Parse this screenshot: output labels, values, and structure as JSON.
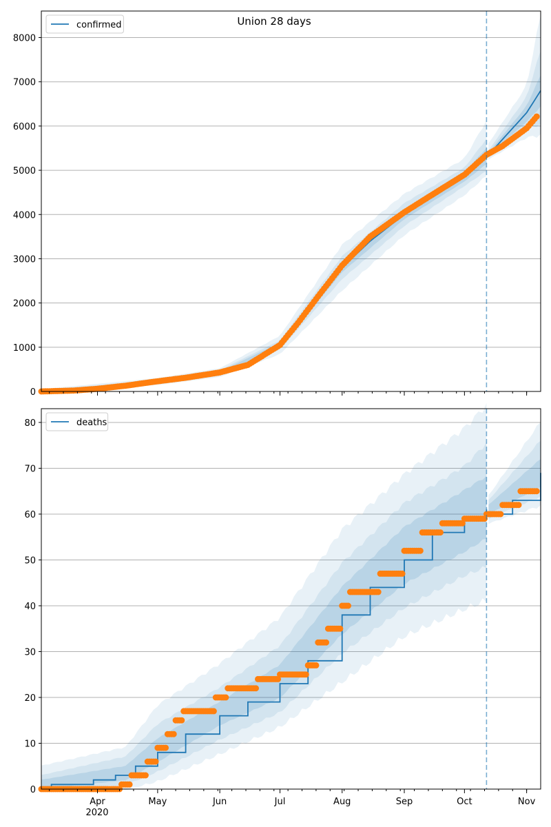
{
  "figure": {
    "title": "Union 28 days",
    "year_label": "2020",
    "colors": {
      "model": "#1f77b4",
      "observed": "#ff7f0e",
      "band": "#1f77b4",
      "grid": "#b0b0b0",
      "cutoff": "#1f77b4"
    }
  },
  "chart_data": [
    {
      "type": "line",
      "panel": "confirmed",
      "title": "Union 28 days",
      "legend": [
        "confirmed"
      ],
      "legend_position": "top-left",
      "grid": "y",
      "x_start": "2020-03-04",
      "x_end": "2020-11-08",
      "cutoff_date": "2020-10-12",
      "x_ticks": [
        "Apr",
        "May",
        "Jun",
        "Jul",
        "Aug",
        "Sep",
        "Oct",
        "Nov"
      ],
      "x_tick_labels_visible": false,
      "y_ticks": [
        0,
        1000,
        2000,
        3000,
        4000,
        5000,
        6000,
        7000,
        8000
      ],
      "ylim": [
        0,
        8600
      ],
      "series": [
        {
          "name": "confirmed",
          "kind": "model",
          "points": [
            [
              "2020-03-04",
              0
            ],
            [
              "2020-03-20",
              20
            ],
            [
              "2020-04-01",
              60
            ],
            [
              "2020-04-15",
              120
            ],
            [
              "2020-05-01",
              220
            ],
            [
              "2020-05-15",
              300
            ],
            [
              "2020-06-01",
              420
            ],
            [
              "2020-06-15",
              600
            ],
            [
              "2020-07-01",
              1050
            ],
            [
              "2020-07-10",
              1500
            ],
            [
              "2020-07-20",
              2100
            ],
            [
              "2020-08-01",
              2800
            ],
            [
              "2020-08-15",
              3400
            ],
            [
              "2020-09-01",
              4000
            ],
            [
              "2020-09-15",
              4400
            ],
            [
              "2020-10-01",
              4850
            ],
            [
              "2020-10-12",
              5300
            ],
            [
              "2020-10-20",
              5700
            ],
            [
              "2020-11-01",
              6300
            ],
            [
              "2020-11-08",
              6800
            ]
          ]
        },
        {
          "name": "observed",
          "kind": "observed",
          "points": [
            [
              "2020-03-04",
              0
            ],
            [
              "2020-03-20",
              20
            ],
            [
              "2020-04-01",
              60
            ],
            [
              "2020-04-15",
              130
            ],
            [
              "2020-05-01",
              230
            ],
            [
              "2020-05-15",
              310
            ],
            [
              "2020-06-01",
              430
            ],
            [
              "2020-06-15",
              600
            ],
            [
              "2020-07-01",
              1050
            ],
            [
              "2020-07-10",
              1550
            ],
            [
              "2020-07-20",
              2150
            ],
            [
              "2020-08-01",
              2850
            ],
            [
              "2020-08-15",
              3500
            ],
            [
              "2020-09-01",
              4050
            ],
            [
              "2020-09-15",
              4450
            ],
            [
              "2020-10-01",
              4900
            ],
            [
              "2020-10-12",
              5350
            ],
            [
              "2020-10-20",
              5550
            ],
            [
              "2020-11-01",
              5950
            ],
            [
              "2020-11-08",
              6320
            ]
          ]
        }
      ],
      "bands": [
        {
          "level": "outer",
          "upper": [
            [
              "2020-03-04",
              50
            ],
            [
              "2020-05-01",
              300
            ],
            [
              "2020-06-01",
              520
            ],
            [
              "2020-07-01",
              1250
            ],
            [
              "2020-08-01",
              3300
            ],
            [
              "2020-09-01",
              4450
            ],
            [
              "2020-10-01",
              5250
            ],
            [
              "2020-10-12",
              6100
            ],
            [
              "2020-10-13",
              5600
            ],
            [
              "2020-11-01",
              6900
            ],
            [
              "2020-11-08",
              8500
            ]
          ],
          "lower": [
            [
              "2020-03-04",
              0
            ],
            [
              "2020-05-01",
              150
            ],
            [
              "2020-06-01",
              330
            ],
            [
              "2020-07-01",
              850
            ],
            [
              "2020-08-01",
              2300
            ],
            [
              "2020-09-01",
              3550
            ],
            [
              "2020-10-01",
              4450
            ],
            [
              "2020-10-12",
              4900
            ],
            [
              "2020-10-13",
              5250
            ],
            [
              "2020-11-01",
              5750
            ],
            [
              "2020-11-08",
              5820
            ]
          ]
        },
        {
          "level": "middle",
          "upper": [
            [
              "2020-03-04",
              30
            ],
            [
              "2020-05-01",
              260
            ],
            [
              "2020-06-01",
              480
            ],
            [
              "2020-07-01",
              1150
            ],
            [
              "2020-08-01",
              3050
            ],
            [
              "2020-09-01",
              4250
            ],
            [
              "2020-10-01",
              5050
            ],
            [
              "2020-10-12",
              5700
            ],
            [
              "2020-10-13",
              5450
            ],
            [
              "2020-11-01",
              6650
            ],
            [
              "2020-11-08",
              7700
            ]
          ],
          "lower": [
            [
              "2020-03-04",
              0
            ],
            [
              "2020-05-01",
              180
            ],
            [
              "2020-06-01",
              370
            ],
            [
              "2020-07-01",
              950
            ],
            [
              "2020-08-01",
              2550
            ],
            [
              "2020-09-01",
              3750
            ],
            [
              "2020-10-01",
              4650
            ],
            [
              "2020-10-12",
              5000
            ],
            [
              "2020-10-13",
              5300
            ],
            [
              "2020-11-01",
              5950
            ],
            [
              "2020-11-08",
              6050
            ]
          ]
        },
        {
          "level": "inner",
          "upper": [
            [
              "2020-03-04",
              15
            ],
            [
              "2020-05-01",
              240
            ],
            [
              "2020-06-01",
              450
            ],
            [
              "2020-07-01",
              1100
            ],
            [
              "2020-08-01",
              2900
            ],
            [
              "2020-09-01",
              4100
            ],
            [
              "2020-10-01",
              4950
            ],
            [
              "2020-10-12",
              5500
            ],
            [
              "2020-10-13",
              5400
            ],
            [
              "2020-11-01",
              6450
            ],
            [
              "2020-11-08",
              7150
            ]
          ],
          "lower": [
            [
              "2020-03-04",
              0
            ],
            [
              "2020-05-01",
              200
            ],
            [
              "2020-06-01",
              390
            ],
            [
              "2020-07-01",
              1000
            ],
            [
              "2020-08-01",
              2700
            ],
            [
              "2020-09-01",
              3900
            ],
            [
              "2020-10-01",
              4750
            ],
            [
              "2020-10-12",
              5150
            ],
            [
              "2020-10-13",
              5350
            ],
            [
              "2020-11-01",
              6100
            ],
            [
              "2020-11-08",
              6450
            ]
          ]
        }
      ]
    },
    {
      "type": "line",
      "panel": "deaths",
      "legend": [
        "deaths"
      ],
      "legend_position": "top-left",
      "grid": "y",
      "x_start": "2020-03-04",
      "x_end": "2020-11-08",
      "cutoff_date": "2020-10-12",
      "x_ticks": [
        "Apr",
        "May",
        "Jun",
        "Jul",
        "Aug",
        "Sep",
        "Oct",
        "Nov"
      ],
      "x_tick_labels_visible": true,
      "y_ticks": [
        0,
        10,
        20,
        30,
        40,
        50,
        60,
        70,
        80
      ],
      "ylim": [
        0,
        83
      ],
      "series": [
        {
          "name": "deaths",
          "kind": "model",
          "step": true,
          "points": [
            [
              "2020-03-04",
              0
            ],
            [
              "2020-03-09",
              1
            ],
            [
              "2020-03-30",
              2
            ],
            [
              "2020-04-10",
              3
            ],
            [
              "2020-04-20",
              5
            ],
            [
              "2020-05-01",
              8
            ],
            [
              "2020-05-15",
              12
            ],
            [
              "2020-06-01",
              16
            ],
            [
              "2020-06-15",
              19
            ],
            [
              "2020-07-01",
              23
            ],
            [
              "2020-07-15",
              28
            ],
            [
              "2020-08-01",
              38
            ],
            [
              "2020-08-15",
              44
            ],
            [
              "2020-09-01",
              50
            ],
            [
              "2020-09-15",
              56
            ],
            [
              "2020-10-01",
              59
            ],
            [
              "2020-10-12",
              61
            ],
            [
              "2020-10-13",
              60
            ],
            [
              "2020-10-25",
              63
            ],
            [
              "2020-11-08",
              69
            ]
          ]
        },
        {
          "name": "observed",
          "kind": "observed",
          "step": true,
          "points": [
            [
              "2020-03-04",
              0
            ],
            [
              "2020-04-13",
              1
            ],
            [
              "2020-04-18",
              3
            ],
            [
              "2020-04-26",
              6
            ],
            [
              "2020-05-01",
              9
            ],
            [
              "2020-05-06",
              12
            ],
            [
              "2020-05-10",
              15
            ],
            [
              "2020-05-14",
              17
            ],
            [
              "2020-05-30",
              20
            ],
            [
              "2020-06-05",
              22
            ],
            [
              "2020-06-20",
              24
            ],
            [
              "2020-07-01",
              25
            ],
            [
              "2020-07-15",
              27
            ],
            [
              "2020-07-20",
              32
            ],
            [
              "2020-07-25",
              35
            ],
            [
              "2020-08-01",
              40
            ],
            [
              "2020-08-05",
              43
            ],
            [
              "2020-08-20",
              47
            ],
            [
              "2020-09-01",
              52
            ],
            [
              "2020-09-10",
              56
            ],
            [
              "2020-09-20",
              58
            ],
            [
              "2020-10-01",
              59
            ],
            [
              "2020-10-12",
              60
            ],
            [
              "2020-10-20",
              62
            ],
            [
              "2020-10-29",
              65
            ],
            [
              "2020-11-08",
              66
            ]
          ]
        }
      ],
      "bands": [
        {
          "level": "outer",
          "upper": [
            [
              "2020-03-04",
              5
            ],
            [
              "2020-04-15",
              9
            ],
            [
              "2020-05-01",
              18
            ],
            [
              "2020-06-01",
              27
            ],
            [
              "2020-07-01",
              37
            ],
            [
              "2020-08-01",
              56
            ],
            [
              "2020-09-01",
              68
            ],
            [
              "2020-10-01",
              78
            ],
            [
              "2020-10-12",
              83
            ],
            [
              "2020-10-13",
              64
            ],
            [
              "2020-11-08",
              80
            ]
          ],
          "lower": [
            [
              "2020-03-04",
              0
            ],
            [
              "2020-04-15",
              0
            ],
            [
              "2020-05-01",
              2
            ],
            [
              "2020-06-01",
              8
            ],
            [
              "2020-07-01",
              14
            ],
            [
              "2020-08-01",
              24
            ],
            [
              "2020-09-01",
              34
            ],
            [
              "2020-10-01",
              40
            ],
            [
              "2020-10-12",
              42
            ],
            [
              "2020-10-13",
              58
            ],
            [
              "2020-11-08",
              62
            ]
          ]
        },
        {
          "level": "middle",
          "upper": [
            [
              "2020-03-04",
              3
            ],
            [
              "2020-04-15",
              7
            ],
            [
              "2020-05-01",
              14
            ],
            [
              "2020-06-01",
              22
            ],
            [
              "2020-07-01",
              31
            ],
            [
              "2020-08-01",
              49
            ],
            [
              "2020-09-01",
              62
            ],
            [
              "2020-10-01",
              70
            ],
            [
              "2020-10-12",
              75
            ],
            [
              "2020-10-13",
              63
            ],
            [
              "2020-11-08",
              76
            ]
          ],
          "lower": [
            [
              "2020-03-04",
              0
            ],
            [
              "2020-04-15",
              1
            ],
            [
              "2020-05-01",
              4
            ],
            [
              "2020-06-01",
              11
            ],
            [
              "2020-07-01",
              17
            ],
            [
              "2020-08-01",
              30
            ],
            [
              "2020-09-01",
              40
            ],
            [
              "2020-10-01",
              47
            ],
            [
              "2020-10-12",
              49
            ],
            [
              "2020-10-13",
              59
            ],
            [
              "2020-11-08",
              64
            ]
          ]
        },
        {
          "level": "inner",
          "upper": [
            [
              "2020-03-04",
              2
            ],
            [
              "2020-04-15",
              5
            ],
            [
              "2020-05-01",
              11
            ],
            [
              "2020-06-01",
              19
            ],
            [
              "2020-07-01",
              27
            ],
            [
              "2020-08-01",
              44
            ],
            [
              "2020-09-01",
              57
            ],
            [
              "2020-10-01",
              65
            ],
            [
              "2020-10-12",
              68
            ],
            [
              "2020-10-13",
              62
            ],
            [
              "2020-11-08",
              72
            ]
          ],
          "lower": [
            [
              "2020-03-04",
              0
            ],
            [
              "2020-04-15",
              2
            ],
            [
              "2020-05-01",
              6
            ],
            [
              "2020-06-01",
              14
            ],
            [
              "2020-07-01",
              20
            ],
            [
              "2020-08-01",
              34
            ],
            [
              "2020-09-01",
              45
            ],
            [
              "2020-10-01",
              52
            ],
            [
              "2020-10-12",
              55
            ],
            [
              "2020-10-13",
              60
            ],
            [
              "2020-11-08",
              66
            ]
          ]
        }
      ]
    }
  ]
}
